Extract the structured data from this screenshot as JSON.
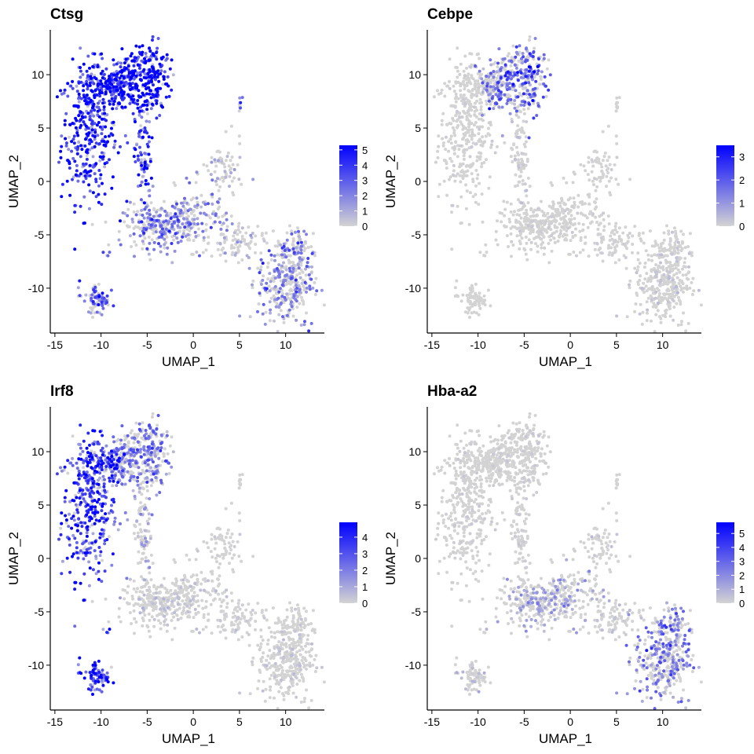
{
  "chart_data": [
    {
      "type": "scatter",
      "title": "Ctsg",
      "xlabel": "UMAP_1",
      "ylabel": "UMAP_2",
      "xlim": [
        -15.5,
        14.2
      ],
      "ylim": [
        -14.2,
        14.2
      ],
      "xticks": [
        -15,
        -10,
        -5,
        0,
        5,
        10
      ],
      "yticks": [
        -10,
        -5,
        0,
        5,
        10
      ],
      "grid": false,
      "legend_position": "right",
      "color_scale": {
        "low": "#d3d3d3",
        "high": "#0000ff",
        "min": 0,
        "max": 5.3,
        "ticks": [
          0,
          1,
          2,
          3,
          4,
          5
        ]
      },
      "expression_by_region": {
        "upper_left_cluster": 4.0,
        "upper_middle_lobe": 4.7,
        "central_stalk": 3.5,
        "central_mass": 2.0,
        "right_arm": 1.0,
        "lower_right_cluster": 2.0,
        "small_bottom_left_cluster": 2.5,
        "isolated_point_group": 2.0
      }
    },
    {
      "type": "scatter",
      "title": "Cebpe",
      "xlabel": "UMAP_1",
      "ylabel": "UMAP_2",
      "xlim": [
        -15.5,
        14.2
      ],
      "ylim": [
        -14.2,
        14.2
      ],
      "xticks": [
        -15,
        -10,
        -5,
        0,
        5,
        10
      ],
      "yticks": [
        -10,
        -5,
        0,
        5,
        10
      ],
      "grid": false,
      "legend_position": "right",
      "color_scale": {
        "low": "#d3d3d3",
        "high": "#0000ff",
        "min": 0,
        "max": 3.5,
        "ticks": [
          0,
          1,
          2,
          3
        ]
      },
      "expression_by_region": {
        "upper_left_cluster": 0.1,
        "upper_middle_lobe": 1.6,
        "central_stalk": 0.2,
        "central_mass": 0.1,
        "right_arm": 0.1,
        "lower_right_cluster": 0.2,
        "small_bottom_left_cluster": 0.0,
        "isolated_point_group": 0.0
      }
    },
    {
      "type": "scatter",
      "title": "Irf8",
      "xlabel": "UMAP_1",
      "ylabel": "UMAP_2",
      "xlim": [
        -15.5,
        14.2
      ],
      "ylim": [
        -14.2,
        14.2
      ],
      "xticks": [
        -15,
        -10,
        -5,
        0,
        5,
        10
      ],
      "yticks": [
        -10,
        -5,
        0,
        5,
        10
      ],
      "grid": false,
      "legend_position": "right",
      "color_scale": {
        "low": "#d3d3d3",
        "high": "#0000ff",
        "min": 0,
        "max": 4.9,
        "ticks": [
          0,
          1,
          2,
          3,
          4
        ]
      },
      "expression_by_region": {
        "upper_left_cluster": 3.3,
        "upper_middle_lobe": 2.0,
        "central_stalk": 1.0,
        "central_mass": 0.4,
        "right_arm": 0.3,
        "lower_right_cluster": 0.3,
        "small_bottom_left_cluster": 3.6,
        "isolated_point_group": 0.3
      }
    },
    {
      "type": "scatter",
      "title": "Hba-a2",
      "xlabel": "UMAP_1",
      "ylabel": "UMAP_2",
      "xlim": [
        -15.5,
        14.2
      ],
      "ylim": [
        -14.2,
        14.2
      ],
      "xticks": [
        -15,
        -10,
        -5,
        0,
        5,
        10
      ],
      "yticks": [
        -10,
        -5,
        0,
        5,
        10
      ],
      "grid": false,
      "legend_position": "right",
      "color_scale": {
        "low": "#d3d3d3",
        "high": "#0000ff",
        "min": 0,
        "max": 5.8,
        "ticks": [
          0,
          1,
          2,
          3,
          4,
          5
        ]
      },
      "expression_by_region": {
        "upper_left_cluster": 0.2,
        "upper_middle_lobe": 0.2,
        "central_stalk": 0.3,
        "central_mass": 1.2,
        "right_arm": 0.4,
        "lower_right_cluster": 2.2,
        "small_bottom_left_cluster": 0.6,
        "isolated_point_group": 0.0
      }
    }
  ]
}
